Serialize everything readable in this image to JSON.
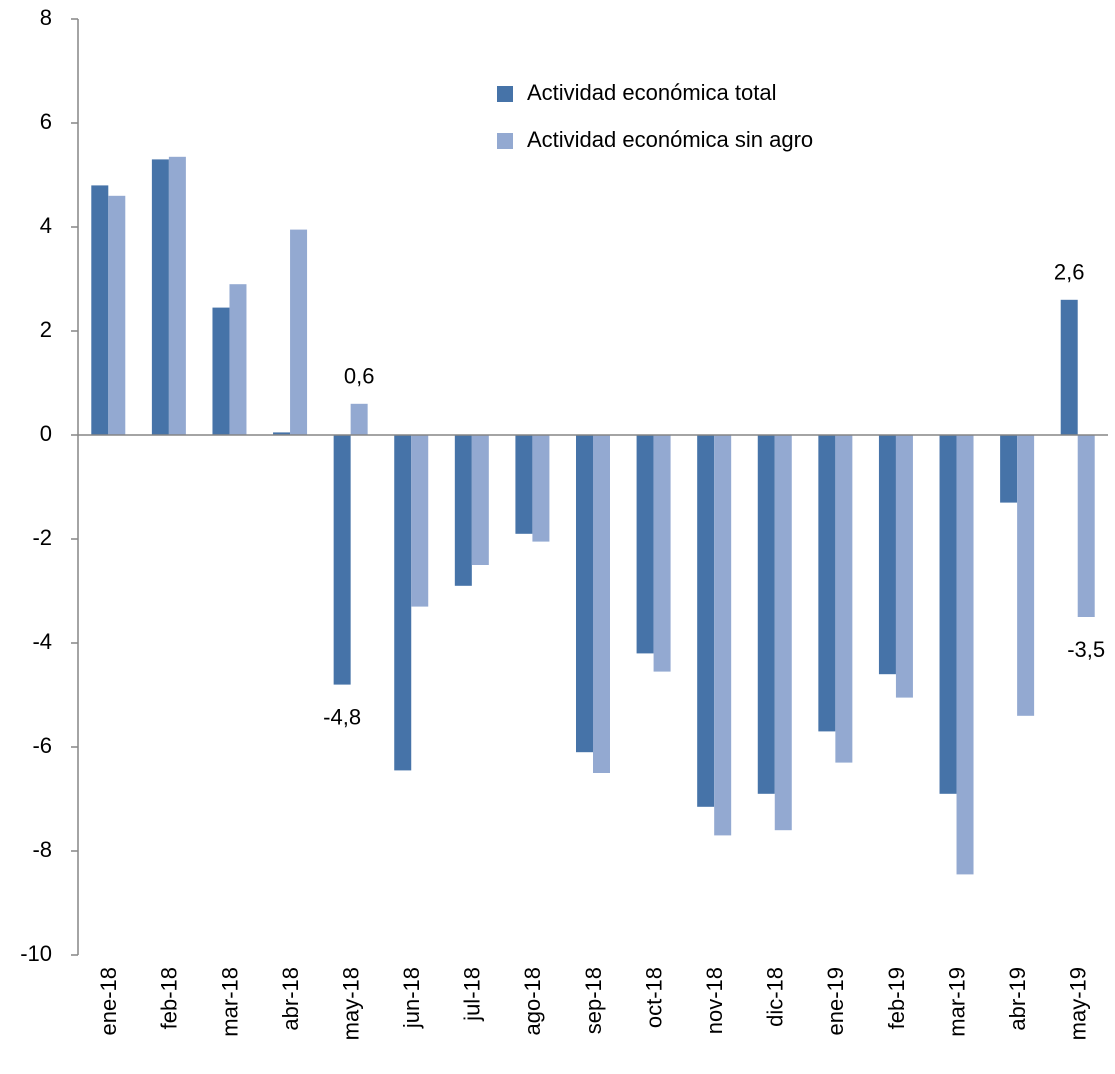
{
  "chart_data": {
    "type": "bar",
    "categories": [
      "ene-18",
      "feb-18",
      "mar-18",
      "abr-18",
      "may-18",
      "jun-18",
      "jul-18",
      "ago-18",
      "sep-18",
      "oct-18",
      "nov-18",
      "dic-18",
      "ene-19",
      "feb-19",
      "mar-19",
      "abr-19",
      "may-19"
    ],
    "series": [
      {
        "name": "Actividad económica total",
        "color": "#4673a8",
        "values": [
          4.8,
          5.3,
          2.45,
          0.05,
          -4.8,
          -6.45,
          -2.9,
          -1.9,
          -6.1,
          -4.2,
          -7.15,
          -6.9,
          -5.7,
          -4.6,
          -6.9,
          -1.3,
          2.6
        ],
        "value_labels": [
          null,
          null,
          null,
          null,
          "-4,8",
          null,
          null,
          null,
          null,
          null,
          null,
          null,
          null,
          null,
          null,
          null,
          "2,6"
        ]
      },
      {
        "name": "Actividad económica sin agro",
        "color": "#93a9d1",
        "values": [
          4.6,
          5.35,
          2.9,
          3.95,
          0.6,
          -3.3,
          -2.5,
          -2.05,
          -6.5,
          -4.55,
          -7.7,
          -7.6,
          -6.3,
          -5.05,
          -8.45,
          -5.4,
          -3.5
        ],
        "value_labels": [
          null,
          null,
          null,
          null,
          "0,6",
          null,
          null,
          null,
          null,
          null,
          null,
          null,
          null,
          null,
          null,
          null,
          "-3,5"
        ]
      }
    ],
    "ylim": [
      -10,
      8
    ],
    "yticks": [
      -10,
      -8,
      -6,
      -4,
      -2,
      0,
      2,
      4,
      6,
      8
    ],
    "grid": false,
    "legend": "top"
  }
}
